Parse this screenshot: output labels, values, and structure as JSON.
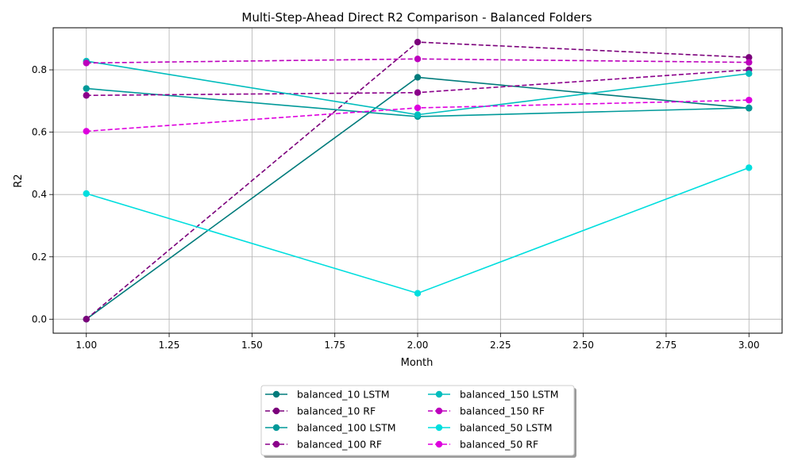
{
  "chart_data": {
    "type": "line",
    "title": "Multi-Step-Ahead Direct R2 Comparison - Balanced Folders",
    "xlabel": "Month",
    "ylabel": "R2",
    "xlim": [
      0.9,
      3.1
    ],
    "ylim": [
      -0.045,
      0.935
    ],
    "x_ticks": [
      "1.00",
      "1.25",
      "1.50",
      "1.75",
      "2.00",
      "2.25",
      "2.50",
      "2.75",
      "3.00"
    ],
    "x_tick_values": [
      1.0,
      1.25,
      1.5,
      1.75,
      2.0,
      2.25,
      2.5,
      2.75,
      3.0
    ],
    "y_ticks": [
      "0.0",
      "0.2",
      "0.4",
      "0.6",
      "0.8"
    ],
    "y_tick_values": [
      0.0,
      0.2,
      0.4,
      0.6,
      0.8
    ],
    "grid": true,
    "legend_position": "bottom-center",
    "x": [
      1,
      2,
      3
    ],
    "series": [
      {
        "name": "balanced_10 LSTM",
        "values": [
          0.0,
          0.776,
          0.677
        ],
        "color": "#007b7b",
        "dashed": false
      },
      {
        "name": "balanced_10 RF",
        "values": [
          0.0,
          0.889,
          0.84
        ],
        "color": "#7b007b",
        "dashed": true
      },
      {
        "name": "balanced_100 LSTM",
        "values": [
          0.74,
          0.65,
          0.678
        ],
        "color": "#009999",
        "dashed": false
      },
      {
        "name": "balanced_100 RF",
        "values": [
          0.718,
          0.727,
          0.8
        ],
        "color": "#8b008b",
        "dashed": true
      },
      {
        "name": "balanced_150 LSTM",
        "values": [
          0.828,
          0.656,
          0.788
        ],
        "color": "#00bdbd",
        "dashed": false
      },
      {
        "name": "balanced_150 RF",
        "values": [
          0.822,
          0.835,
          0.824
        ],
        "color": "#bd00bd",
        "dashed": true
      },
      {
        "name": "balanced_50 LSTM",
        "values": [
          0.403,
          0.083,
          0.486
        ],
        "color": "#00dede",
        "dashed": false
      },
      {
        "name": "balanced_50 RF",
        "values": [
          0.603,
          0.678,
          0.703
        ],
        "color": "#de00de",
        "dashed": true
      }
    ]
  }
}
